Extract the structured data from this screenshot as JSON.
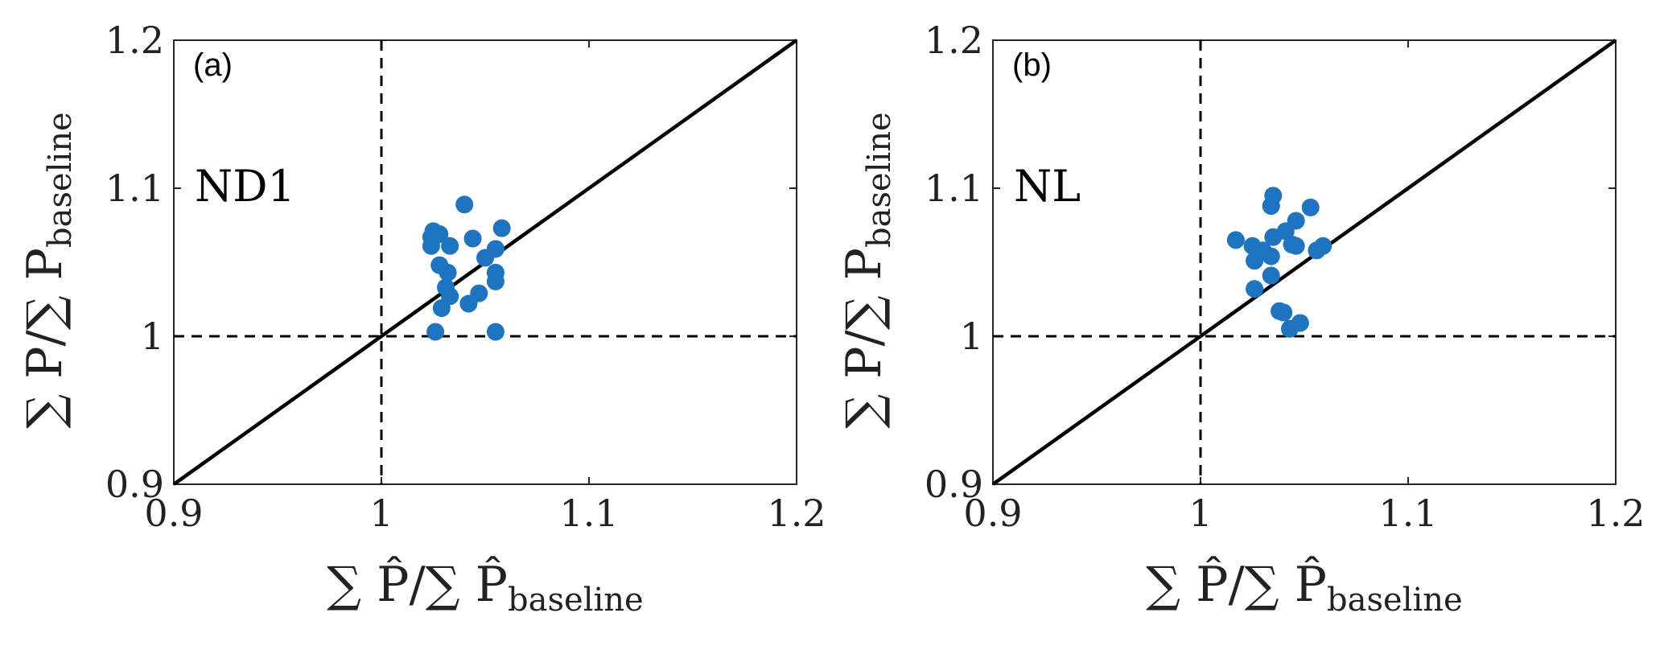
{
  "chart_data": [
    {
      "type": "scatter",
      "panel_label": "(a)",
      "annotation": "ND1",
      "xlabel": {
        "main": "∑ P̂/∑ P̂",
        "sub": "baseline"
      },
      "ylabel": {
        "main": "∑ P/∑ P",
        "sub": "baseline"
      },
      "xlim": [
        0.9,
        1.2
      ],
      "ylim": [
        0.9,
        1.2
      ],
      "xticks": [
        0.9,
        1.0,
        1.1,
        1.2
      ],
      "yticks": [
        0.9,
        1.0,
        1.1,
        1.2
      ],
      "xtick_labels": [
        "0.9",
        "1",
        "1.1",
        "1.2"
      ],
      "ytick_labels": [
        "0.9",
        "1",
        "1.1",
        "1.2"
      ],
      "reference_line": {
        "from": [
          0.9,
          0.9
        ],
        "to": [
          1.2,
          1.2
        ],
        "style": "solid"
      },
      "guide_lines": {
        "x": 1.0,
        "y": 1.0,
        "style": "dashed"
      },
      "grid": false,
      "marker_color": "#1f74bf",
      "points": [
        {
          "x": 1.04,
          "y": 1.089
        },
        {
          "x": 1.025,
          "y": 1.071
        },
        {
          "x": 1.028,
          "y": 1.069
        },
        {
          "x": 1.024,
          "y": 1.067
        },
        {
          "x": 1.024,
          "y": 1.061
        },
        {
          "x": 1.033,
          "y": 1.061
        },
        {
          "x": 1.044,
          "y": 1.066
        },
        {
          "x": 1.058,
          "y": 1.073
        },
        {
          "x": 1.055,
          "y": 1.059
        },
        {
          "x": 1.05,
          "y": 1.053
        },
        {
          "x": 1.028,
          "y": 1.048
        },
        {
          "x": 1.032,
          "y": 1.043
        },
        {
          "x": 1.055,
          "y": 1.043
        },
        {
          "x": 1.055,
          "y": 1.037
        },
        {
          "x": 1.031,
          "y": 1.033
        },
        {
          "x": 1.047,
          "y": 1.029
        },
        {
          "x": 1.033,
          "y": 1.027
        },
        {
          "x": 1.042,
          "y": 1.022
        },
        {
          "x": 1.029,
          "y": 1.019
        },
        {
          "x": 1.026,
          "y": 1.003
        },
        {
          "x": 1.055,
          "y": 1.003
        }
      ]
    },
    {
      "type": "scatter",
      "panel_label": "(b)",
      "annotation": "NL",
      "xlabel": {
        "main": "∑ P̂/∑ P̂",
        "sub": "baseline"
      },
      "ylabel": {
        "main": "∑ P/∑ P",
        "sub": "baseline"
      },
      "xlim": [
        0.9,
        1.2
      ],
      "ylim": [
        0.9,
        1.2
      ],
      "xticks": [
        0.9,
        1.0,
        1.1,
        1.2
      ],
      "yticks": [
        0.9,
        1.0,
        1.1,
        1.2
      ],
      "xtick_labels": [
        "0.9",
        "1",
        "1.1",
        "1.2"
      ],
      "ytick_labels": [
        "0.9",
        "1",
        "1.1",
        "1.2"
      ],
      "reference_line": {
        "from": [
          0.9,
          0.9
        ],
        "to": [
          1.2,
          1.2
        ],
        "style": "solid"
      },
      "guide_lines": {
        "x": 1.0,
        "y": 1.0,
        "style": "dashed"
      },
      "grid": false,
      "marker_color": "#1f74bf",
      "points": [
        {
          "x": 1.035,
          "y": 1.095
        },
        {
          "x": 1.034,
          "y": 1.088
        },
        {
          "x": 1.053,
          "y": 1.087
        },
        {
          "x": 1.046,
          "y": 1.078
        },
        {
          "x": 1.041,
          "y": 1.071
        },
        {
          "x": 1.035,
          "y": 1.067
        },
        {
          "x": 1.017,
          "y": 1.065
        },
        {
          "x": 1.044,
          "y": 1.062
        },
        {
          "x": 1.025,
          "y": 1.061
        },
        {
          "x": 1.046,
          "y": 1.061
        },
        {
          "x": 1.059,
          "y": 1.061
        },
        {
          "x": 1.03,
          "y": 1.058
        },
        {
          "x": 1.056,
          "y": 1.058
        },
        {
          "x": 1.034,
          "y": 1.054
        },
        {
          "x": 1.026,
          "y": 1.051
        },
        {
          "x": 1.034,
          "y": 1.041
        },
        {
          "x": 1.026,
          "y": 1.032
        },
        {
          "x": 1.038,
          "y": 1.017
        },
        {
          "x": 1.04,
          "y": 1.016
        },
        {
          "x": 1.048,
          "y": 1.009
        },
        {
          "x": 1.043,
          "y": 1.005
        }
      ]
    }
  ]
}
